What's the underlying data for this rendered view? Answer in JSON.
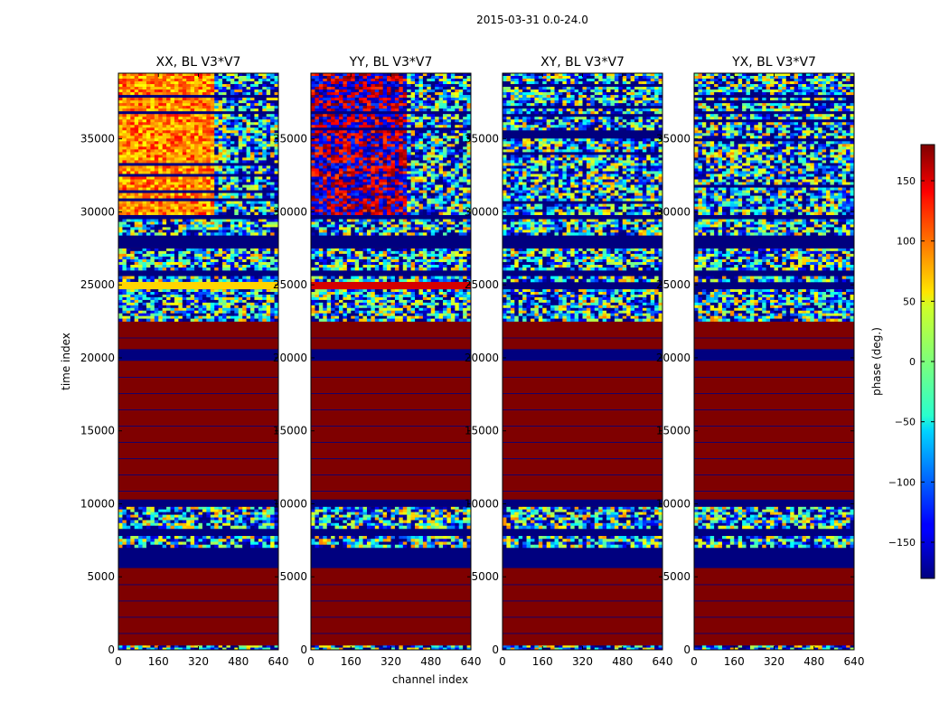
{
  "figure_title": "2015-03-31 0.0-24.0",
  "chart_data": {
    "type": "heatmap",
    "title": "2015-03-31 0.0-24.0",
    "xlabel": "channel index",
    "ylabel": "time index",
    "xlim": [
      0,
      640
    ],
    "ylim": [
      0,
      39500
    ],
    "xticks": [
      0,
      160,
      320,
      480,
      640
    ],
    "yticks": [
      0,
      5000,
      10000,
      15000,
      20000,
      25000,
      30000,
      35000
    ],
    "colormap": "jet",
    "colorbar": {
      "label": "phase (deg.)",
      "range": [
        -180,
        180
      ],
      "ticks": [
        -150,
        -100,
        -50,
        0,
        50,
        100,
        150
      ],
      "tick_labels": [
        "−150",
        "−100",
        "−50",
        "0",
        "50",
        "100",
        "150"
      ]
    },
    "time_bands": [
      {
        "from": 0,
        "to": 300,
        "fill": "noise"
      },
      {
        "from": 300,
        "to": 5600,
        "fill": "max"
      },
      {
        "from": 5600,
        "to": 7000,
        "fill": "min"
      },
      {
        "from": 7000,
        "to": 7800,
        "fill": "noise"
      },
      {
        "from": 7800,
        "to": 8300,
        "fill": "min"
      },
      {
        "from": 8300,
        "to": 8700,
        "fill": "noise"
      },
      {
        "from": 8700,
        "to": 9800,
        "fill": "noise"
      },
      {
        "from": 9800,
        "to": 10300,
        "fill": "min"
      },
      {
        "from": 10300,
        "to": 19800,
        "fill": "max"
      },
      {
        "from": 19800,
        "to": 20600,
        "fill": "min"
      },
      {
        "from": 20600,
        "to": 22500,
        "fill": "max"
      },
      {
        "from": 22500,
        "to": 24700,
        "fill": "noise"
      },
      {
        "from": 24700,
        "to": 25200,
        "fill": "min"
      },
      {
        "from": 25200,
        "to": 25600,
        "fill": "noise"
      },
      {
        "from": 25600,
        "to": 26000,
        "fill": "min"
      },
      {
        "from": 26000,
        "to": 27500,
        "fill": "noise"
      },
      {
        "from": 27500,
        "to": 28400,
        "fill": "min"
      },
      {
        "from": 28400,
        "to": 29500,
        "fill": "noise"
      },
      {
        "from": 29500,
        "to": 29800,
        "fill": "min"
      },
      {
        "from": 29800,
        "to": 39500,
        "fill": "noise"
      }
    ],
    "panels": [
      {
        "title": "XX, BL V3*V7",
        "flag_band": {
          "from": 24700,
          "to": 25200,
          "phase": 60
        }
      },
      {
        "title": "YY, BL V3*V7",
        "flag_band": {
          "from": 24700,
          "to": 25200,
          "phase": 150
        }
      },
      {
        "title": "XY, BL V3*V7",
        "flag_band": null
      },
      {
        "title": "YX, BL V3*V7",
        "flag_band": null
      }
    ]
  }
}
